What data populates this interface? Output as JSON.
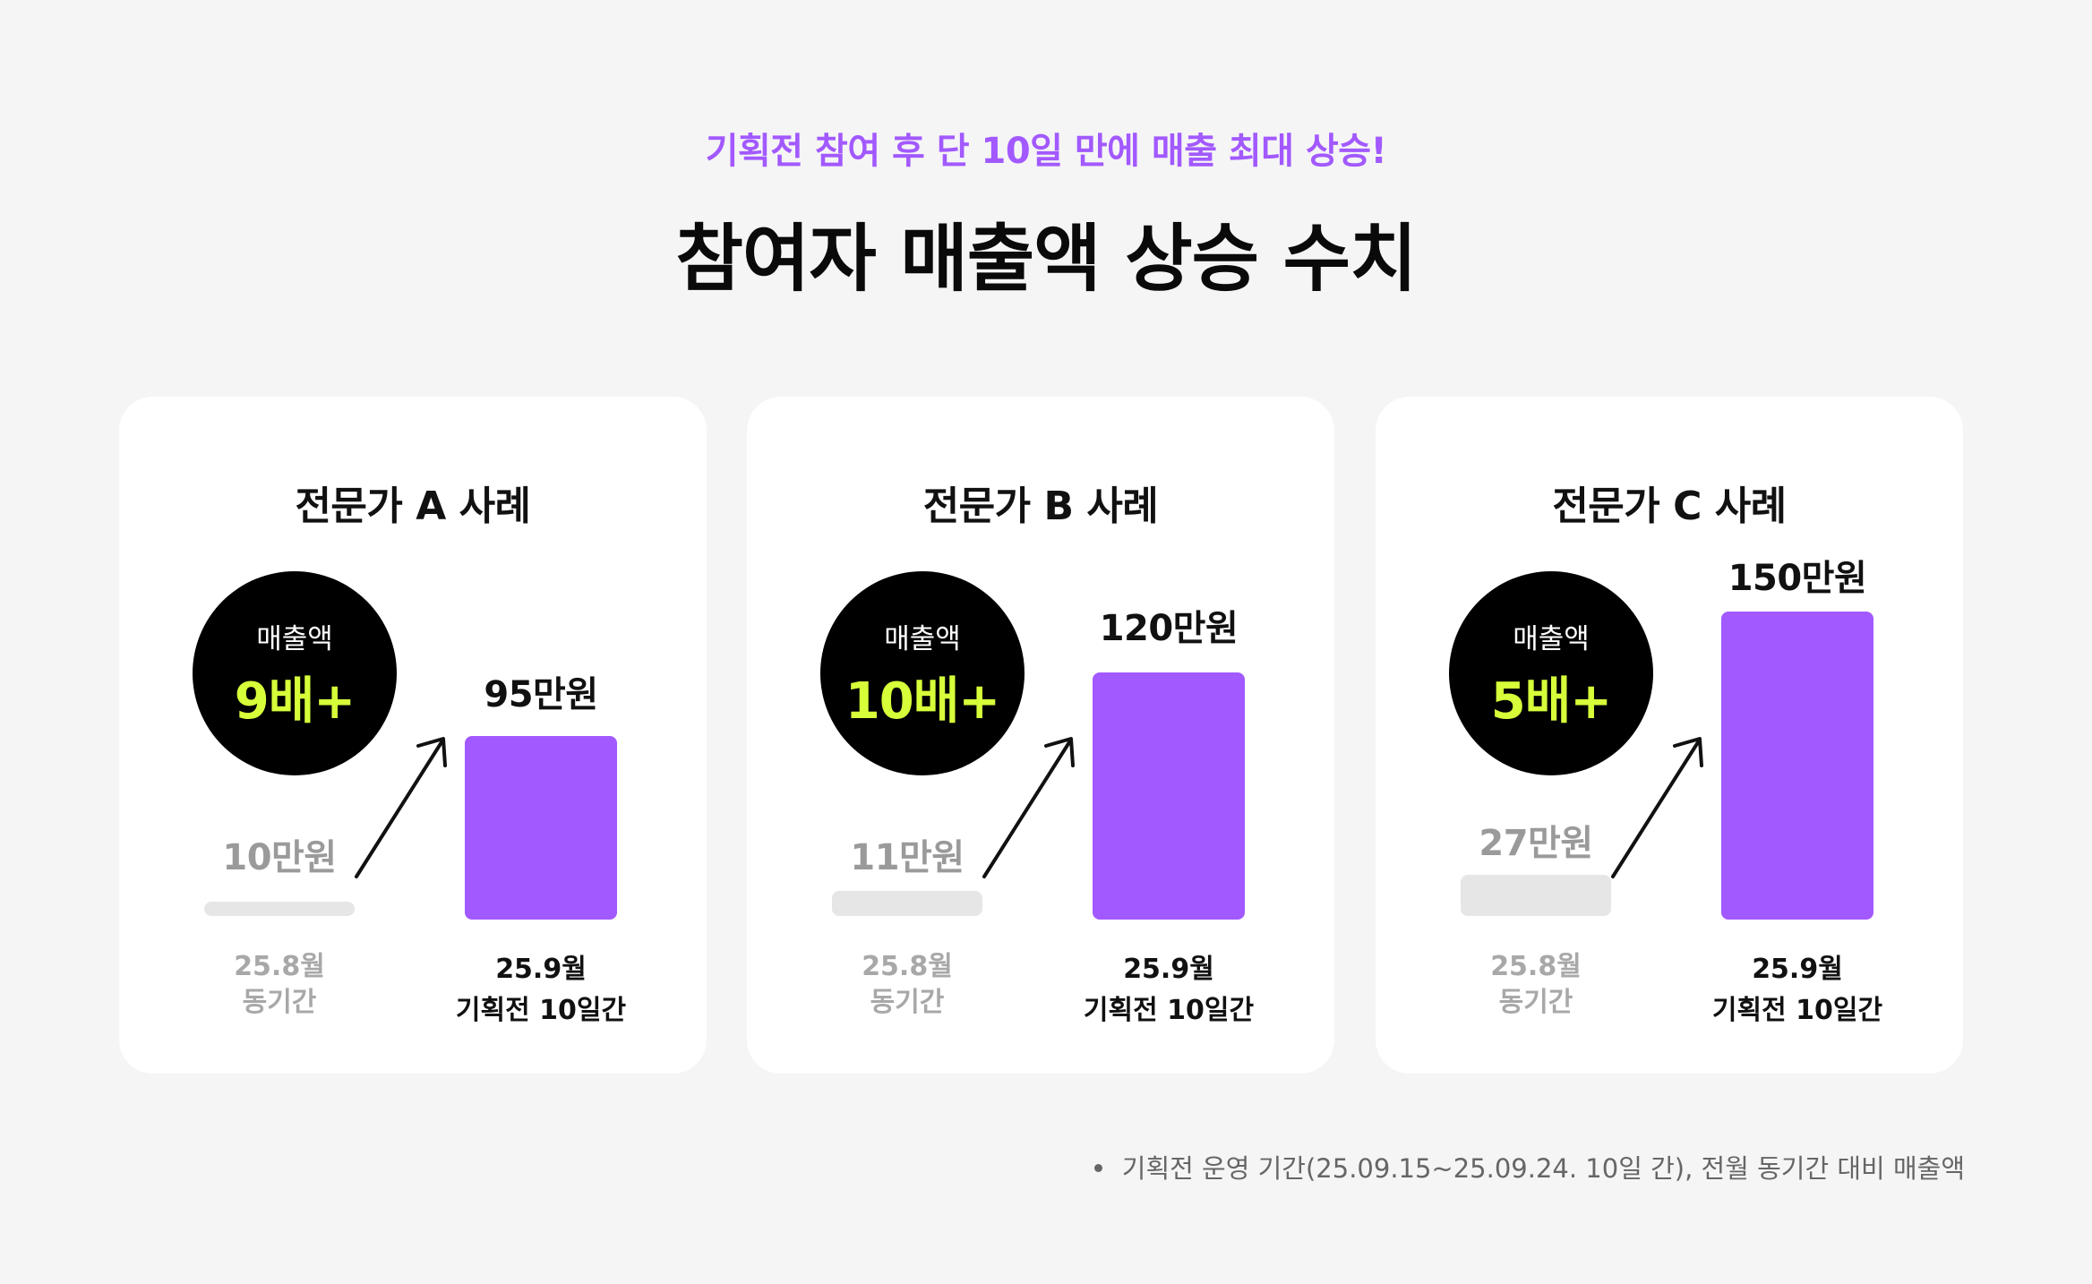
{
  "header": {
    "subtitle": "기획전 참여 후 단 10일 만에 매출 최대 상승!",
    "title": "참여자 매출액 상승 수치"
  },
  "colors": {
    "accent_purple": "#a259ff",
    "accent_lime": "#d6ff3a",
    "bar_before": "#e6e6e6",
    "background": "#f5f5f5"
  },
  "cards": [
    {
      "title": "전문가 A 사례",
      "badge_label": "매출액",
      "multiplier": "9배+",
      "before": {
        "value_label": "10만원",
        "value": 10,
        "period_line1": "25.8월",
        "period_line2": "동기간"
      },
      "after": {
        "value_label": "95만원",
        "value": 95,
        "period_line1": "25.9월",
        "period_line2": "기획전 10일간"
      }
    },
    {
      "title": "전문가 B 사례",
      "badge_label": "매출액",
      "multiplier": "10배+",
      "before": {
        "value_label": "11만원",
        "value": 11,
        "period_line1": "25.8월",
        "period_line2": "동기간"
      },
      "after": {
        "value_label": "120만원",
        "value": 120,
        "period_line1": "25.9월",
        "period_line2": "기획전 10일간"
      }
    },
    {
      "title": "전문가 C 사례",
      "badge_label": "매출액",
      "multiplier": "5배+",
      "before": {
        "value_label": "27만원",
        "value": 27,
        "period_line1": "25.8월",
        "period_line2": "동기간"
      },
      "after": {
        "value_label": "150만원",
        "value": 150,
        "period_line1": "25.9월",
        "period_line2": "기획전 10일간"
      }
    }
  ],
  "footnote": "기획전 운영 기간(25.09.15~25.09.24. 10일 간), 전월 동기간 대비 매출액"
}
